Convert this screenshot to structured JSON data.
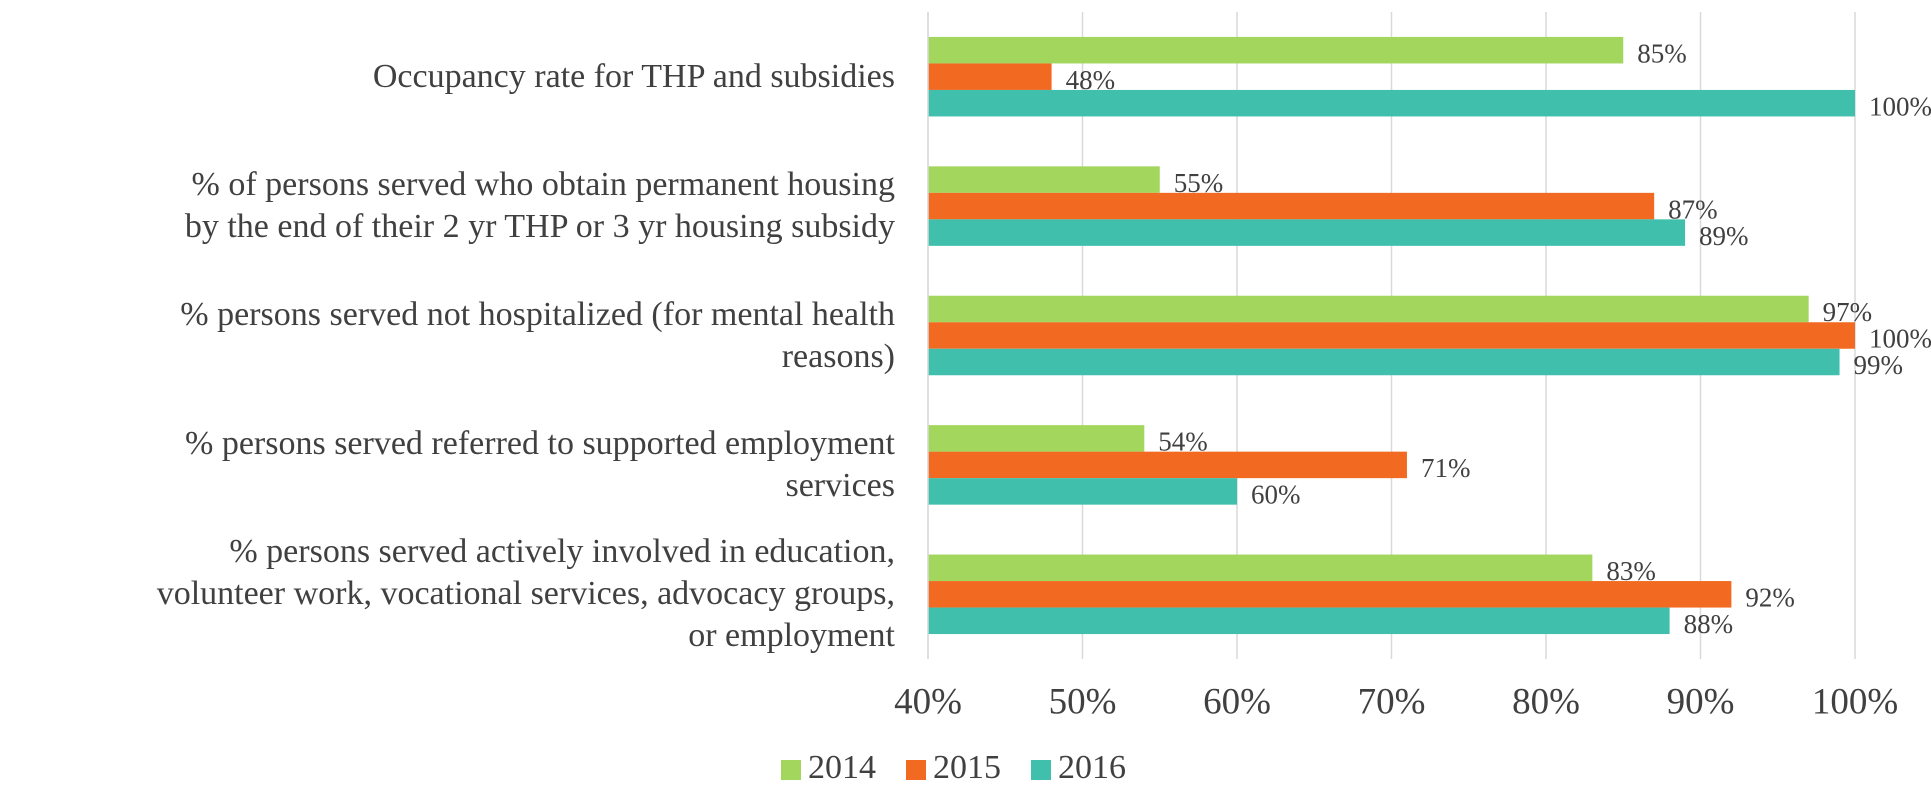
{
  "chart_data": {
    "type": "hbar",
    "categories": [
      "Occupancy rate for THP and subsidies",
      "% of persons served who obtain permanent housing\nby the end of their 2 yr THP or 3 yr housing subsidy",
      "% persons served not hospitalized (for mental health\nreasons)",
      "% persons served referred to supported employment\nservices",
      "% persons served actively involved in education,\nvolunteer work, vocational services, advocacy groups,\nor employment"
    ],
    "series": [
      {
        "name": "2014",
        "color": "#a3d65c",
        "values": [
          85,
          55,
          97,
          54,
          83
        ],
        "value_labels": [
          "85%",
          "55%",
          "97%",
          "54%",
          "83%"
        ]
      },
      {
        "name": "2015",
        "color": "#f26a22",
        "values": [
          48,
          87,
          100,
          71,
          92
        ],
        "value_labels": [
          "48%",
          "87%",
          "100%",
          "71%",
          "92%"
        ]
      },
      {
        "name": "2016",
        "color": "#40bfac",
        "values": [
          100,
          89,
          99,
          60,
          88
        ],
        "value_labels": [
          "100%",
          "89%",
          "99%",
          "60%",
          "88%"
        ]
      }
    ],
    "xlim": [
      40,
      100
    ],
    "xticks": [
      {
        "value": 40,
        "label": "40%"
      },
      {
        "value": 50,
        "label": "50%"
      },
      {
        "value": 60,
        "label": "60%"
      },
      {
        "value": 70,
        "label": "70%"
      },
      {
        "value": 80,
        "label": "80%"
      },
      {
        "value": 90,
        "label": "90%"
      },
      {
        "value": 100,
        "label": "100%"
      }
    ],
    "grid": true,
    "legend": "bottom"
  }
}
